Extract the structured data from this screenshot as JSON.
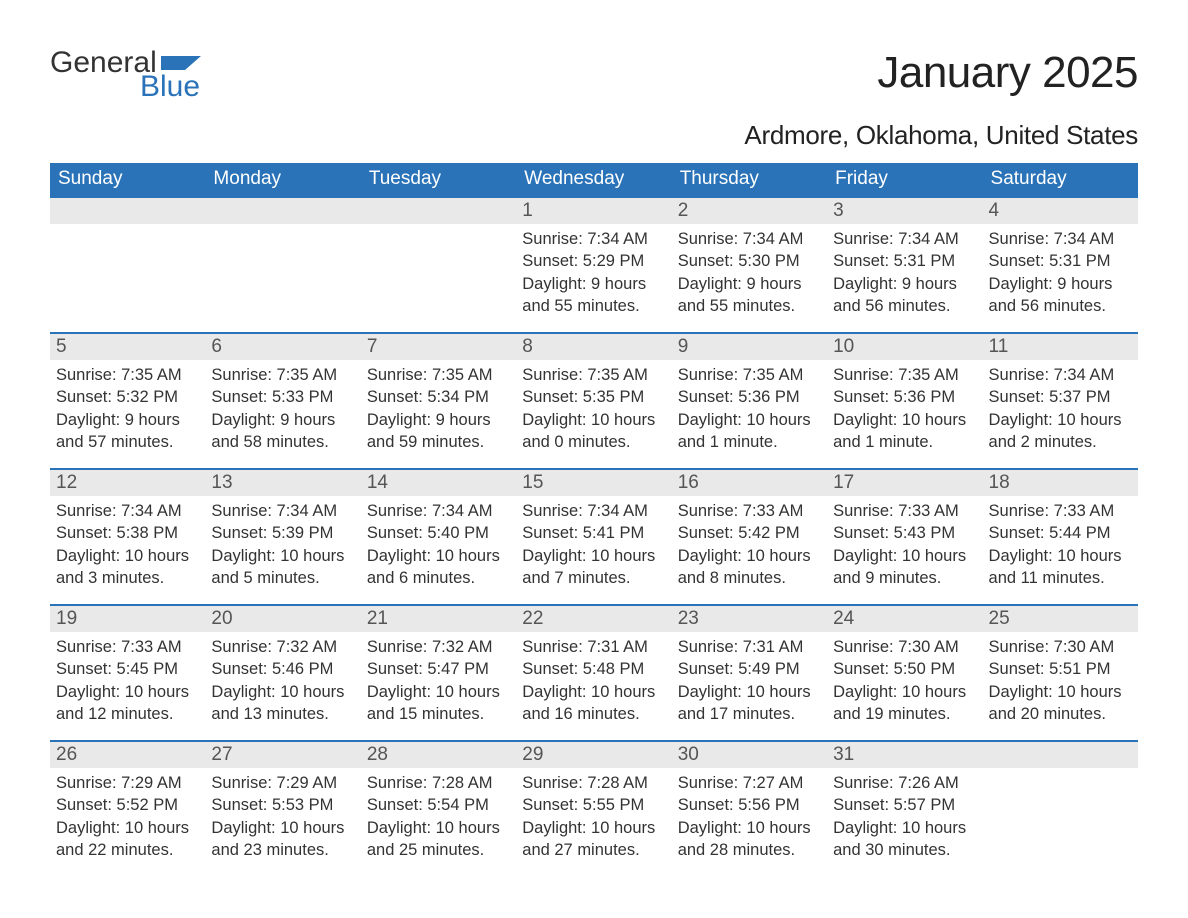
{
  "logo": {
    "text1": "General",
    "text2": "Blue",
    "flag_color": "#2a73b8"
  },
  "title": "January 2025",
  "location": "Ardmore, Oklahoma, United States",
  "colors": {
    "header_bg": "#2a73b8",
    "header_text": "#ffffff",
    "daynum_bg": "#e9e9e9",
    "daynum_text": "#555555",
    "body_text": "#333333",
    "row_border": "#2a73b8",
    "page_bg": "#ffffff"
  },
  "typography": {
    "title_fontsize": 44,
    "location_fontsize": 26,
    "weekday_fontsize": 19,
    "daynum_fontsize": 19,
    "body_fontsize": 16.5
  },
  "weekdays": [
    "Sunday",
    "Monday",
    "Tuesday",
    "Wednesday",
    "Thursday",
    "Friday",
    "Saturday"
  ],
  "weeks": [
    [
      {
        "n": "",
        "sunrise": "",
        "sunset": "",
        "daylight": ""
      },
      {
        "n": "",
        "sunrise": "",
        "sunset": "",
        "daylight": ""
      },
      {
        "n": "",
        "sunrise": "",
        "sunset": "",
        "daylight": ""
      },
      {
        "n": "1",
        "sunrise": "Sunrise: 7:34 AM",
        "sunset": "Sunset: 5:29 PM",
        "daylight": "Daylight: 9 hours and 55 minutes."
      },
      {
        "n": "2",
        "sunrise": "Sunrise: 7:34 AM",
        "sunset": "Sunset: 5:30 PM",
        "daylight": "Daylight: 9 hours and 55 minutes."
      },
      {
        "n": "3",
        "sunrise": "Sunrise: 7:34 AM",
        "sunset": "Sunset: 5:31 PM",
        "daylight": "Daylight: 9 hours and 56 minutes."
      },
      {
        "n": "4",
        "sunrise": "Sunrise: 7:34 AM",
        "sunset": "Sunset: 5:31 PM",
        "daylight": "Daylight: 9 hours and 56 minutes."
      }
    ],
    [
      {
        "n": "5",
        "sunrise": "Sunrise: 7:35 AM",
        "sunset": "Sunset: 5:32 PM",
        "daylight": "Daylight: 9 hours and 57 minutes."
      },
      {
        "n": "6",
        "sunrise": "Sunrise: 7:35 AM",
        "sunset": "Sunset: 5:33 PM",
        "daylight": "Daylight: 9 hours and 58 minutes."
      },
      {
        "n": "7",
        "sunrise": "Sunrise: 7:35 AM",
        "sunset": "Sunset: 5:34 PM",
        "daylight": "Daylight: 9 hours and 59 minutes."
      },
      {
        "n": "8",
        "sunrise": "Sunrise: 7:35 AM",
        "sunset": "Sunset: 5:35 PM",
        "daylight": "Daylight: 10 hours and 0 minutes."
      },
      {
        "n": "9",
        "sunrise": "Sunrise: 7:35 AM",
        "sunset": "Sunset: 5:36 PM",
        "daylight": "Daylight: 10 hours and 1 minute."
      },
      {
        "n": "10",
        "sunrise": "Sunrise: 7:35 AM",
        "sunset": "Sunset: 5:36 PM",
        "daylight": "Daylight: 10 hours and 1 minute."
      },
      {
        "n": "11",
        "sunrise": "Sunrise: 7:34 AM",
        "sunset": "Sunset: 5:37 PM",
        "daylight": "Daylight: 10 hours and 2 minutes."
      }
    ],
    [
      {
        "n": "12",
        "sunrise": "Sunrise: 7:34 AM",
        "sunset": "Sunset: 5:38 PM",
        "daylight": "Daylight: 10 hours and 3 minutes."
      },
      {
        "n": "13",
        "sunrise": "Sunrise: 7:34 AM",
        "sunset": "Sunset: 5:39 PM",
        "daylight": "Daylight: 10 hours and 5 minutes."
      },
      {
        "n": "14",
        "sunrise": "Sunrise: 7:34 AM",
        "sunset": "Sunset: 5:40 PM",
        "daylight": "Daylight: 10 hours and 6 minutes."
      },
      {
        "n": "15",
        "sunrise": "Sunrise: 7:34 AM",
        "sunset": "Sunset: 5:41 PM",
        "daylight": "Daylight: 10 hours and 7 minutes."
      },
      {
        "n": "16",
        "sunrise": "Sunrise: 7:33 AM",
        "sunset": "Sunset: 5:42 PM",
        "daylight": "Daylight: 10 hours and 8 minutes."
      },
      {
        "n": "17",
        "sunrise": "Sunrise: 7:33 AM",
        "sunset": "Sunset: 5:43 PM",
        "daylight": "Daylight: 10 hours and 9 minutes."
      },
      {
        "n": "18",
        "sunrise": "Sunrise: 7:33 AM",
        "sunset": "Sunset: 5:44 PM",
        "daylight": "Daylight: 10 hours and 11 minutes."
      }
    ],
    [
      {
        "n": "19",
        "sunrise": "Sunrise: 7:33 AM",
        "sunset": "Sunset: 5:45 PM",
        "daylight": "Daylight: 10 hours and 12 minutes."
      },
      {
        "n": "20",
        "sunrise": "Sunrise: 7:32 AM",
        "sunset": "Sunset: 5:46 PM",
        "daylight": "Daylight: 10 hours and 13 minutes."
      },
      {
        "n": "21",
        "sunrise": "Sunrise: 7:32 AM",
        "sunset": "Sunset: 5:47 PM",
        "daylight": "Daylight: 10 hours and 15 minutes."
      },
      {
        "n": "22",
        "sunrise": "Sunrise: 7:31 AM",
        "sunset": "Sunset: 5:48 PM",
        "daylight": "Daylight: 10 hours and 16 minutes."
      },
      {
        "n": "23",
        "sunrise": "Sunrise: 7:31 AM",
        "sunset": "Sunset: 5:49 PM",
        "daylight": "Daylight: 10 hours and 17 minutes."
      },
      {
        "n": "24",
        "sunrise": "Sunrise: 7:30 AM",
        "sunset": "Sunset: 5:50 PM",
        "daylight": "Daylight: 10 hours and 19 minutes."
      },
      {
        "n": "25",
        "sunrise": "Sunrise: 7:30 AM",
        "sunset": "Sunset: 5:51 PM",
        "daylight": "Daylight: 10 hours and 20 minutes."
      }
    ],
    [
      {
        "n": "26",
        "sunrise": "Sunrise: 7:29 AM",
        "sunset": "Sunset: 5:52 PM",
        "daylight": "Daylight: 10 hours and 22 minutes."
      },
      {
        "n": "27",
        "sunrise": "Sunrise: 7:29 AM",
        "sunset": "Sunset: 5:53 PM",
        "daylight": "Daylight: 10 hours and 23 minutes."
      },
      {
        "n": "28",
        "sunrise": "Sunrise: 7:28 AM",
        "sunset": "Sunset: 5:54 PM",
        "daylight": "Daylight: 10 hours and 25 minutes."
      },
      {
        "n": "29",
        "sunrise": "Sunrise: 7:28 AM",
        "sunset": "Sunset: 5:55 PM",
        "daylight": "Daylight: 10 hours and 27 minutes."
      },
      {
        "n": "30",
        "sunrise": "Sunrise: 7:27 AM",
        "sunset": "Sunset: 5:56 PM",
        "daylight": "Daylight: 10 hours and 28 minutes."
      },
      {
        "n": "31",
        "sunrise": "Sunrise: 7:26 AM",
        "sunset": "Sunset: 5:57 PM",
        "daylight": "Daylight: 10 hours and 30 minutes."
      },
      {
        "n": "",
        "sunrise": "",
        "sunset": "",
        "daylight": ""
      }
    ]
  ]
}
